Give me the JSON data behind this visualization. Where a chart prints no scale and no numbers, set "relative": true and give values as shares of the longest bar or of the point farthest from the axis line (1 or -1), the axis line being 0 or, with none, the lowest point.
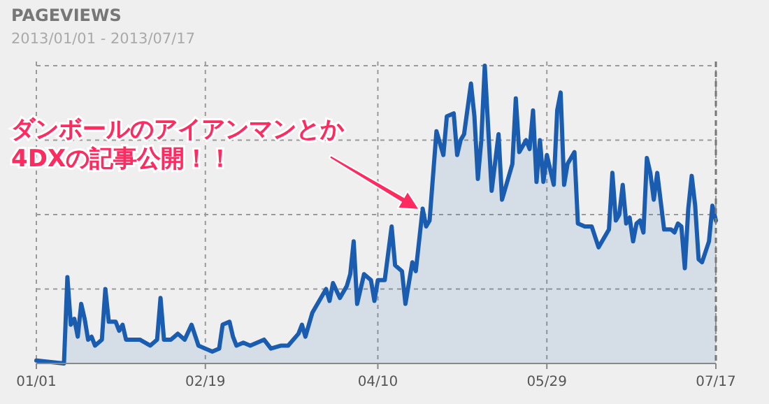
{
  "chart_data": {
    "type": "area",
    "title": "PAGEVIEWS",
    "subtitle": "2013/01/01 - 2013/07/17",
    "relative": true,
    "grid": true,
    "marker": "none",
    "line_style": "solid",
    "xlim": [
      "2013-01-01",
      "2013-07-17"
    ],
    "xticks": [
      {
        "value": "2013-01-01",
        "label": "01/01"
      },
      {
        "value": "2013-02-19",
        "label": "02/19"
      },
      {
        "value": "2013-04-10",
        "label": "04/10"
      },
      {
        "value": "2013-05-29",
        "label": "05/29"
      },
      {
        "value": "2013-07-17",
        "label": "07/17"
      }
    ],
    "annotations": [
      "ダンボールのアイアンマンとか\n4DXの記事公開！！"
    ],
    "series": [
      {
        "color": "#1a5cb0",
        "x": [
          "2013-01-01",
          "2013-01-09",
          "2013-01-10",
          "2013-01-11",
          "2013-01-12",
          "2013-01-13",
          "2013-01-14",
          "2013-01-15",
          "2013-01-16",
          "2013-01-17",
          "2013-01-18",
          "2013-01-20",
          "2013-01-21",
          "2013-01-22",
          "2013-01-24",
          "2013-01-25",
          "2013-01-26",
          "2013-01-27",
          "2013-01-29",
          "2013-01-31",
          "2013-02-03",
          "2013-02-05",
          "2013-02-06",
          "2013-02-07",
          "2013-02-09",
          "2013-02-11",
          "2013-02-13",
          "2013-02-15",
          "2013-02-17",
          "2013-02-19",
          "2013-02-21",
          "2013-02-23",
          "2013-02-24",
          "2013-02-26",
          "2013-02-27",
          "2013-02-28",
          "2013-03-02",
          "2013-03-04",
          "2013-03-06",
          "2013-03-08",
          "2013-03-10",
          "2013-03-13",
          "2013-03-15",
          "2013-03-18",
          "2013-03-19",
          "2013-03-20",
          "2013-03-22",
          "2013-03-25",
          "2013-03-26",
          "2013-03-27",
          "2013-03-28",
          "2013-03-30",
          "2013-04-01",
          "2013-04-02",
          "2013-04-03",
          "2013-04-04",
          "2013-04-06",
          "2013-04-08",
          "2013-04-09",
          "2013-04-10",
          "2013-04-12",
          "2013-04-14",
          "2013-04-15",
          "2013-04-17",
          "2013-04-18",
          "2013-04-20",
          "2013-04-21",
          "2013-04-23",
          "2013-04-24",
          "2013-04-25",
          "2013-04-27",
          "2013-04-29",
          "2013-04-30",
          "2013-05-02",
          "2013-05-03",
          "2013-05-04",
          "2013-05-05",
          "2013-05-07",
          "2013-05-08",
          "2013-05-09",
          "2013-05-10",
          "2013-05-11",
          "2013-05-13",
          "2013-05-15",
          "2013-05-16",
          "2013-05-19",
          "2013-05-20",
          "2013-05-21",
          "2013-05-23",
          "2013-05-24",
          "2013-05-25",
          "2013-05-26",
          "2013-05-27",
          "2013-05-28",
          "2013-05-29",
          "2013-05-31",
          "2013-06-01",
          "2013-06-02",
          "2013-06-03",
          "2013-06-04",
          "2013-06-06",
          "2013-06-07",
          "2013-06-09",
          "2013-06-11",
          "2013-06-13",
          "2013-06-15",
          "2013-06-16",
          "2013-06-17",
          "2013-06-18",
          "2013-06-19",
          "2013-06-20",
          "2013-06-21",
          "2013-06-22",
          "2013-06-23",
          "2013-06-24",
          "2013-06-25",
          "2013-06-26",
          "2013-06-27",
          "2013-06-28",
          "2013-06-29",
          "2013-06-30",
          "2013-07-02",
          "2013-07-04",
          "2013-07-05",
          "2013-07-06",
          "2013-07-07",
          "2013-07-08",
          "2013-07-09",
          "2013-07-10",
          "2013-07-11",
          "2013-07-12",
          "2013-07-13",
          "2013-07-15",
          "2013-07-16",
          "2013-07-17"
        ],
        "values": [
          0.01,
          0.0,
          0.29,
          0.13,
          0.15,
          0.09,
          0.2,
          0.15,
          0.08,
          0.09,
          0.06,
          0.08,
          0.25,
          0.14,
          0.14,
          0.11,
          0.13,
          0.08,
          0.08,
          0.08,
          0.06,
          0.08,
          0.22,
          0.08,
          0.08,
          0.1,
          0.08,
          0.13,
          0.06,
          0.05,
          0.04,
          0.05,
          0.13,
          0.14,
          0.09,
          0.06,
          0.07,
          0.06,
          0.07,
          0.08,
          0.05,
          0.06,
          0.06,
          0.1,
          0.13,
          0.09,
          0.17,
          0.23,
          0.25,
          0.21,
          0.27,
          0.22,
          0.26,
          0.3,
          0.41,
          0.2,
          0.3,
          0.28,
          0.21,
          0.28,
          0.28,
          0.46,
          0.33,
          0.31,
          0.2,
          0.34,
          0.31,
          0.52,
          0.46,
          0.48,
          0.78,
          0.7,
          0.83,
          0.84,
          0.7,
          0.75,
          0.77,
          0.94,
          0.83,
          0.62,
          0.75,
          1.0,
          0.58,
          0.77,
          0.55,
          0.67,
          0.89,
          0.71,
          0.75,
          0.72,
          0.85,
          0.61,
          0.75,
          0.61,
          0.7,
          0.6,
          0.85,
          0.91,
          0.6,
          0.67,
          0.71,
          0.47,
          0.46,
          0.46,
          0.39,
          0.43,
          0.45,
          0.64,
          0.48,
          0.5,
          0.6,
          0.47,
          0.49,
          0.41,
          0.47,
          0.48,
          0.44,
          0.69,
          0.64,
          0.55,
          0.64,
          0.45,
          0.45,
          0.44,
          0.47,
          0.46,
          0.32,
          0.52,
          0.63,
          0.53,
          0.35,
          0.34,
          0.41,
          0.53,
          0.48
        ]
      }
    ]
  }
}
